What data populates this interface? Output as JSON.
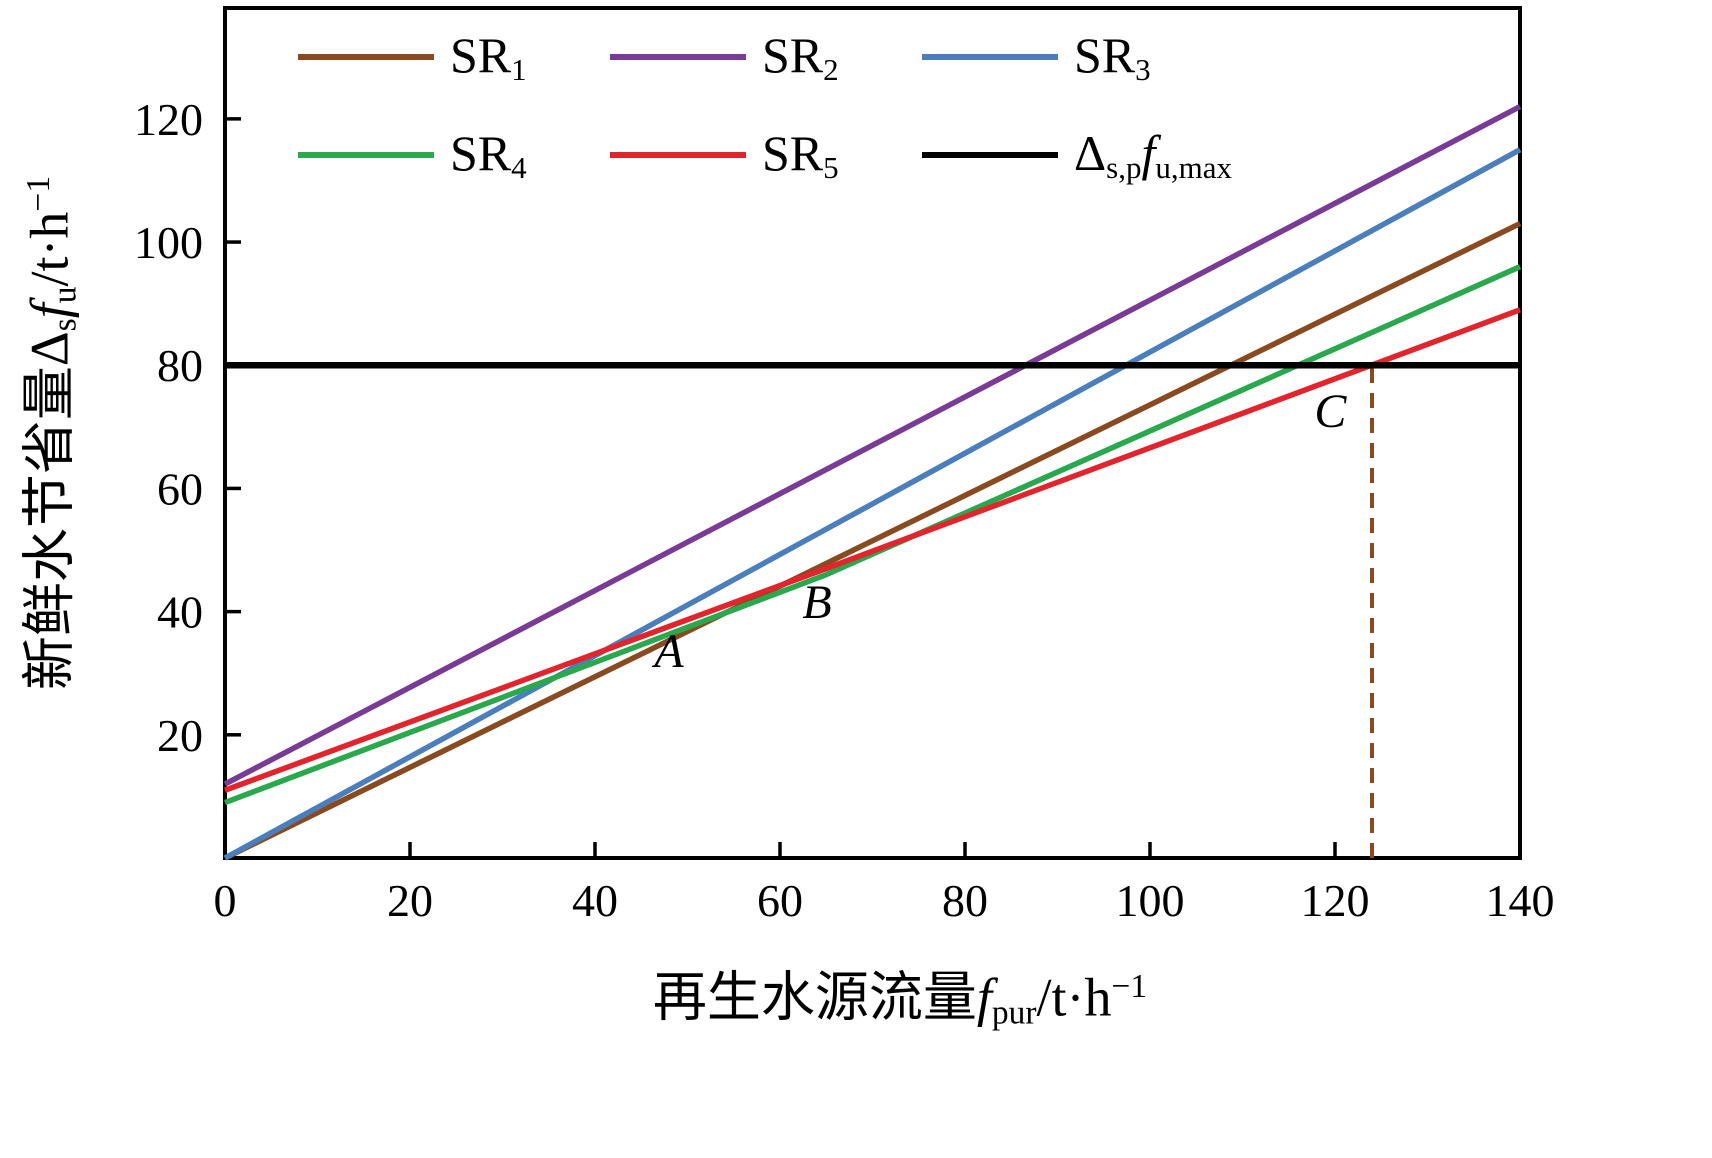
{
  "chart_data": {
    "type": "line",
    "title": "",
    "xlabel": "再生水源流量 f_pur / t·h^-1",
    "ylabel": "新鲜水节省量 Δ_s f_u / t·h^-1",
    "xlim": [
      0,
      140
    ],
    "ylim": [
      0,
      138
    ],
    "x_ticks": [
      0,
      20,
      40,
      60,
      80,
      100,
      120,
      140
    ],
    "y_ticks": [
      20,
      40,
      60,
      80,
      100,
      120
    ],
    "grid": false,
    "legend_position": "top-left-two-rows",
    "series": [
      {
        "name": "SR1",
        "color": "#8a4a20",
        "points": [
          [
            0,
            0
          ],
          [
            140,
            103
          ]
        ]
      },
      {
        "name": "SR2",
        "color": "#7a3b96",
        "points": [
          [
            0,
            12
          ],
          [
            140,
            122
          ]
        ]
      },
      {
        "name": "SR3",
        "color": "#4a7ebc",
        "points": [
          [
            0,
            0
          ],
          [
            140,
            115
          ]
        ]
      },
      {
        "name": "SR4",
        "color": "#2aa84d",
        "points": [
          [
            0,
            9
          ],
          [
            65,
            46
          ],
          [
            140,
            96
          ]
        ]
      },
      {
        "name": "SR5",
        "color": "#e2242c",
        "points": [
          [
            0,
            11
          ],
          [
            65,
            47
          ],
          [
            140,
            89
          ]
        ]
      }
    ],
    "max_line": {
      "name": "Δ_s,p f_u,max",
      "color": "#000000",
      "y": 80
    },
    "guide_line": {
      "x": 124,
      "y_from": 0,
      "y_to": 80,
      "color": "#8a4a20",
      "style": "dashed"
    },
    "annotations": [
      {
        "label": "A",
        "x": 48,
        "y": 31
      },
      {
        "label": "B",
        "x": 64,
        "y": 39
      },
      {
        "label": "C",
        "x": 119.5,
        "y": 70
      }
    ],
    "legend": {
      "rows": [
        [
          {
            "color": "#8a4a20",
            "parts": [
              {
                "t": "SR"
              },
              {
                "t": "1",
                "sub": true
              }
            ]
          },
          {
            "color": "#7a3b96",
            "parts": [
              {
                "t": "SR"
              },
              {
                "t": "2",
                "sub": true
              }
            ]
          },
          {
            "color": "#4a7ebc",
            "parts": [
              {
                "t": "SR"
              },
              {
                "t": "3",
                "sub": true
              }
            ]
          }
        ],
        [
          {
            "color": "#2aa84d",
            "parts": [
              {
                "t": "SR"
              },
              {
                "t": "4",
                "sub": true
              }
            ]
          },
          {
            "color": "#e2242c",
            "parts": [
              {
                "t": "SR"
              },
              {
                "t": "5",
                "sub": true
              }
            ]
          },
          {
            "color": "#000000",
            "parts": [
              {
                "t": "Δ"
              },
              {
                "t": "s,p",
                "sub": true
              },
              {
                "t": "f",
                "italic": true
              },
              {
                "t": "u,max",
                "sub": true
              }
            ]
          }
        ]
      ]
    }
  },
  "axes": {
    "x_title_parts": [
      {
        "t": "再生水源流量"
      },
      {
        "t": "f",
        "italic": true
      },
      {
        "t": "pur",
        "sub": true
      },
      {
        "t": "/t·h"
      },
      {
        "t": "−1",
        "sup": true
      }
    ],
    "y_title_parts": [
      {
        "t": "新鲜水节省量"
      },
      {
        "t": "Δ"
      },
      {
        "t": "s",
        "sub": true
      },
      {
        "t": "f",
        "italic": true
      },
      {
        "t": "u",
        "sub": true
      },
      {
        "t": "/t·h"
      },
      {
        "t": "−1",
        "sup": true
      }
    ]
  }
}
